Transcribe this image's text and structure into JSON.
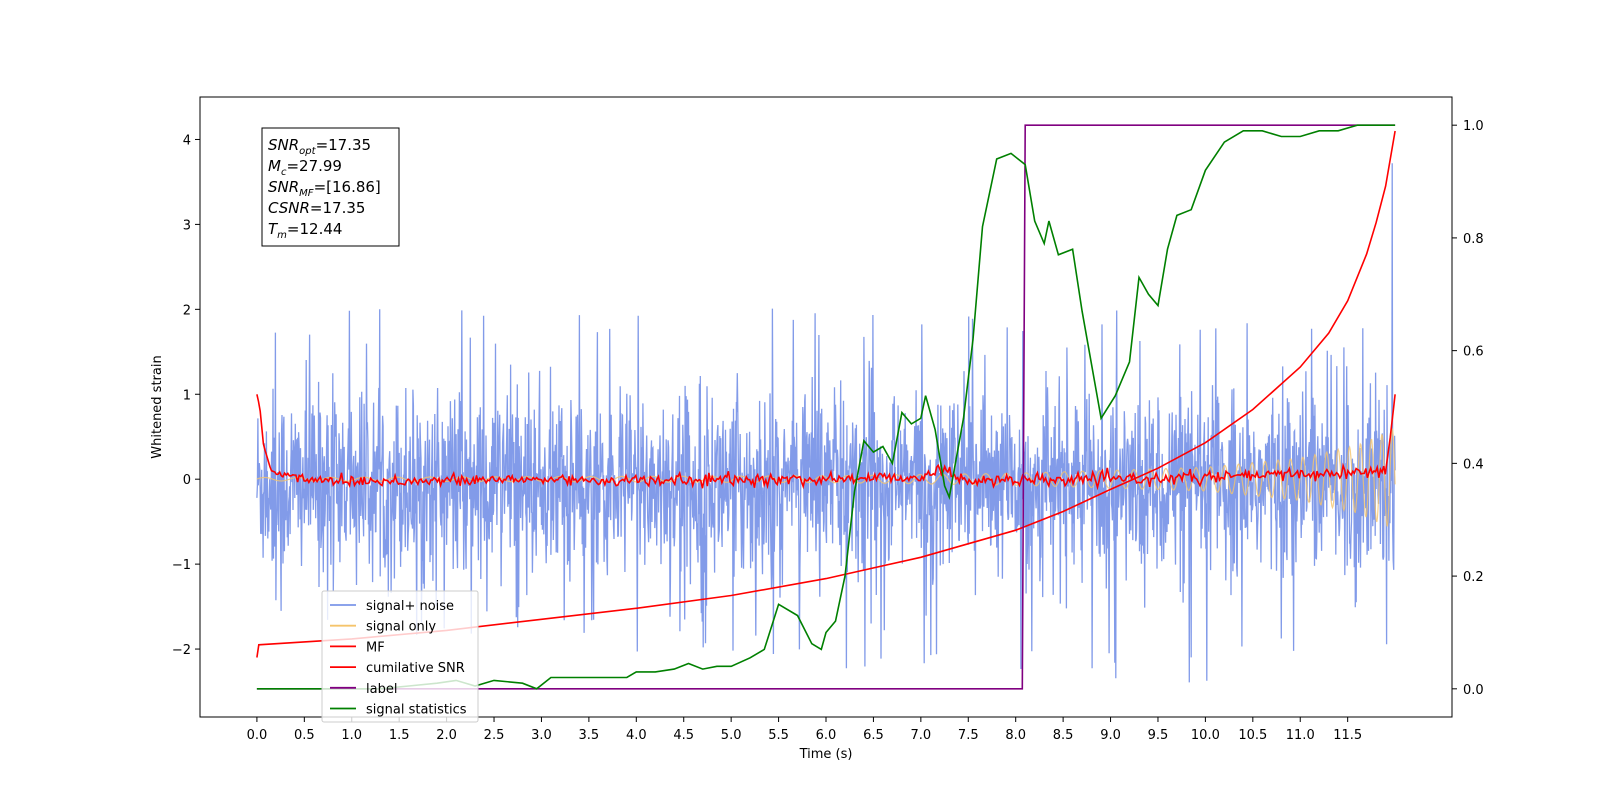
{
  "chart_data": {
    "type": "line",
    "xlabel": "Time (s)",
    "ylabel_left": "Whitened strain",
    "ylabel_right": "",
    "xlim": [
      -0.6,
      12.6
    ],
    "ylim_left": [
      -2.8,
      4.5
    ],
    "ylim_right": [
      -0.05,
      1.05
    ],
    "x_ticks": [
      0.0,
      0.5,
      1.0,
      1.5,
      2.0,
      2.5,
      3.0,
      3.5,
      4.0,
      4.5,
      5.0,
      5.5,
      6.0,
      6.5,
      7.0,
      7.5,
      8.0,
      8.5,
      9.0,
      9.5,
      10.0,
      10.5,
      11.0,
      11.5
    ],
    "x_tick_labels": [
      "0.0",
      "0.5",
      "1.0",
      "1.5",
      "2.0",
      "2.5",
      "3.0",
      "3.5",
      "4.0",
      "4.5",
      "5.0",
      "5.5",
      "6.0",
      "6.5",
      "7.0",
      "7.5",
      "8.0",
      "8.5",
      "9.0",
      "9.5",
      "10.0",
      "10.5",
      "11.0",
      "11.5"
    ],
    "y_ticks_left": [
      -2,
      -1,
      0,
      1,
      2,
      3,
      4
    ],
    "y_tick_labels_left": [
      "−2",
      "−1",
      "0",
      "1",
      "2",
      "3",
      "4"
    ],
    "y_ticks_right": [
      0.0,
      0.2,
      0.4,
      0.6,
      0.8,
      1.0
    ],
    "y_tick_labels_right": [
      "0.0",
      "0.2",
      "0.4",
      "0.6",
      "0.8",
      "1.0"
    ],
    "grid": false,
    "legend_position": "lower-left",
    "annotation_box": {
      "lines": [
        {
          "var": "SNR",
          "sub": "opt",
          "text": "=17.35"
        },
        {
          "var": "M",
          "sub": "c",
          "text": "=27.99"
        },
        {
          "var": "SNR",
          "sub": "MF",
          "text": "=[16.86]"
        },
        {
          "var": "CSNR",
          "sub": "",
          "text": "=17.35"
        },
        {
          "var": "T",
          "sub": "m",
          "text": "=12.44"
        }
      ]
    },
    "series": [
      {
        "name": "signal+ noise",
        "axis": "left",
        "color": "#7b96e8",
        "kind": "noise",
        "x_start": 0.0,
        "x_end": 12.0,
        "std": 0.55,
        "mean": -0.05,
        "envelope_max": [
          [
            0.0,
            1.85
          ],
          [
            1.0,
            2.0
          ],
          [
            3.0,
            2.0
          ],
          [
            4.65,
            2.35
          ],
          [
            6.0,
            2.0
          ],
          [
            7.4,
            2.15
          ],
          [
            8.0,
            2.05
          ],
          [
            11.8,
            1.85
          ],
          [
            12.0,
            4.15
          ]
        ],
        "envelope_min": [
          [
            0.0,
            -1.65
          ],
          [
            2.0,
            -1.9
          ],
          [
            5.4,
            -2.2
          ],
          [
            8.7,
            -2.4
          ],
          [
            10.1,
            -2.5
          ],
          [
            11.9,
            -2.2
          ],
          [
            12.0,
            -1.8
          ]
        ]
      },
      {
        "name": "signal only",
        "axis": "left",
        "color": "#f5c46b",
        "kind": "chirp",
        "x_start": 0.0,
        "x_end": 12.0,
        "amplitude": [
          [
            0.0,
            0.02
          ],
          [
            6.0,
            0.04
          ],
          [
            8.0,
            0.07
          ],
          [
            10.0,
            0.14
          ],
          [
            11.0,
            0.25
          ],
          [
            11.6,
            0.4
          ],
          [
            12.0,
            0.6
          ]
        ]
      },
      {
        "name": "MF",
        "axis": "left",
        "color": "#ff0000",
        "points": [
          [
            0.0,
            1.0
          ],
          [
            0.03,
            0.85
          ],
          [
            0.07,
            0.4
          ],
          [
            0.15,
            0.1
          ],
          [
            0.3,
            0.04
          ],
          [
            0.6,
            0.0
          ],
          [
            1.0,
            -0.02
          ],
          [
            2.0,
            -0.02
          ],
          [
            3.0,
            0.0
          ],
          [
            4.0,
            -0.02
          ],
          [
            5.0,
            -0.01
          ],
          [
            6.0,
            0.0
          ],
          [
            7.0,
            0.03
          ],
          [
            7.2,
            0.12
          ],
          [
            7.4,
            0.0
          ],
          [
            8.0,
            -0.02
          ],
          [
            9.0,
            0.0
          ],
          [
            10.0,
            0.02
          ],
          [
            11.0,
            0.06
          ],
          [
            11.7,
            0.08
          ],
          [
            11.9,
            0.1
          ],
          [
            11.95,
            0.5
          ],
          [
            12.0,
            1.0
          ]
        ],
        "noise_amp": 0.035
      },
      {
        "name": "cumilative SNR",
        "axis": "left",
        "color": "#ff0000",
        "points": [
          [
            0.0,
            -2.1
          ],
          [
            0.02,
            -1.95
          ],
          [
            1.0,
            -1.88
          ],
          [
            2.0,
            -1.78
          ],
          [
            3.0,
            -1.65
          ],
          [
            4.0,
            -1.52
          ],
          [
            5.0,
            -1.37
          ],
          [
            6.0,
            -1.17
          ],
          [
            7.0,
            -0.92
          ],
          [
            8.0,
            -0.6
          ],
          [
            8.5,
            -0.38
          ],
          [
            9.0,
            -0.12
          ],
          [
            9.5,
            0.13
          ],
          [
            10.0,
            0.43
          ],
          [
            10.5,
            0.82
          ],
          [
            11.0,
            1.32
          ],
          [
            11.3,
            1.72
          ],
          [
            11.5,
            2.1
          ],
          [
            11.7,
            2.65
          ],
          [
            11.8,
            3.02
          ],
          [
            11.9,
            3.45
          ],
          [
            12.0,
            4.1
          ]
        ]
      },
      {
        "name": "label",
        "axis": "right",
        "color": "#800080",
        "points": [
          [
            0.0,
            0.0
          ],
          [
            8.07,
            0.0
          ],
          [
            8.1,
            1.0
          ],
          [
            12.0,
            1.0
          ]
        ]
      },
      {
        "name": "signal statistics",
        "axis": "right",
        "color": "#008000",
        "points": [
          [
            0.0,
            0.0
          ],
          [
            0.5,
            0.0
          ],
          [
            1.0,
            0.0
          ],
          [
            1.3,
            0.0
          ],
          [
            1.6,
            0.005
          ],
          [
            1.9,
            0.01
          ],
          [
            2.1,
            0.015
          ],
          [
            2.3,
            0.005
          ],
          [
            2.5,
            0.015
          ],
          [
            2.8,
            0.01
          ],
          [
            2.95,
            0.0
          ],
          [
            3.1,
            0.02
          ],
          [
            3.3,
            0.02
          ],
          [
            3.7,
            0.02
          ],
          [
            3.9,
            0.02
          ],
          [
            4.0,
            0.03
          ],
          [
            4.2,
            0.03
          ],
          [
            4.4,
            0.035
          ],
          [
            4.55,
            0.045
          ],
          [
            4.7,
            0.035
          ],
          [
            4.85,
            0.04
          ],
          [
            5.0,
            0.04
          ],
          [
            5.2,
            0.055
          ],
          [
            5.35,
            0.07
          ],
          [
            5.5,
            0.15
          ],
          [
            5.7,
            0.13
          ],
          [
            5.85,
            0.08
          ],
          [
            5.95,
            0.07
          ],
          [
            6.0,
            0.1
          ],
          [
            6.1,
            0.12
          ],
          [
            6.2,
            0.2
          ],
          [
            6.3,
            0.35
          ],
          [
            6.4,
            0.44
          ],
          [
            6.5,
            0.42
          ],
          [
            6.6,
            0.43
          ],
          [
            6.7,
            0.4
          ],
          [
            6.8,
            0.49
          ],
          [
            6.9,
            0.47
          ],
          [
            7.0,
            0.48
          ],
          [
            7.05,
            0.52
          ],
          [
            7.15,
            0.46
          ],
          [
            7.25,
            0.36
          ],
          [
            7.3,
            0.34
          ],
          [
            7.45,
            0.48
          ],
          [
            7.55,
            0.62
          ],
          [
            7.65,
            0.82
          ],
          [
            7.8,
            0.94
          ],
          [
            7.95,
            0.95
          ],
          [
            8.1,
            0.93
          ],
          [
            8.2,
            0.83
          ],
          [
            8.3,
            0.79
          ],
          [
            8.35,
            0.83
          ],
          [
            8.45,
            0.77
          ],
          [
            8.6,
            0.78
          ],
          [
            8.7,
            0.67
          ],
          [
            8.9,
            0.48
          ],
          [
            9.05,
            0.52
          ],
          [
            9.2,
            0.58
          ],
          [
            9.3,
            0.73
          ],
          [
            9.4,
            0.7
          ],
          [
            9.5,
            0.68
          ],
          [
            9.6,
            0.78
          ],
          [
            9.7,
            0.84
          ],
          [
            9.85,
            0.85
          ],
          [
            10.0,
            0.92
          ],
          [
            10.2,
            0.97
          ],
          [
            10.4,
            0.99
          ],
          [
            10.6,
            0.99
          ],
          [
            10.8,
            0.98
          ],
          [
            11.0,
            0.98
          ],
          [
            11.2,
            0.99
          ],
          [
            11.4,
            0.99
          ],
          [
            11.6,
            1.0
          ],
          [
            11.8,
            1.0
          ],
          [
            12.0,
            1.0
          ]
        ]
      }
    ]
  }
}
